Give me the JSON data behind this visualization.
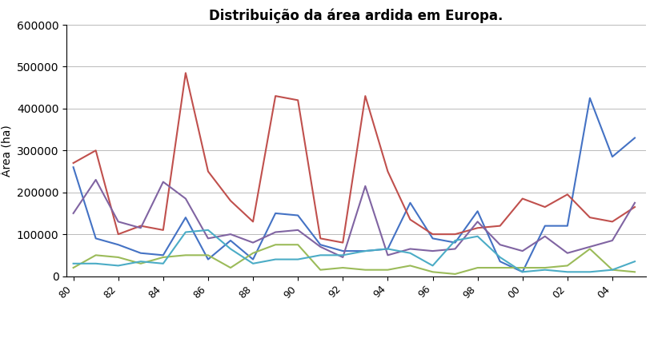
{
  "title": "Distribuição da área ardida em Europa.",
  "ylabel": "Área (ha)",
  "years": [
    1980,
    1981,
    1982,
    1983,
    1984,
    1985,
    1986,
    1987,
    1988,
    1989,
    1990,
    1991,
    1992,
    1993,
    1994,
    1995,
    1996,
    1997,
    1998,
    1999,
    2000,
    2001,
    2002,
    2003,
    2004,
    2005
  ],
  "series": {
    "Portugal": {
      "color": "#4472C4",
      "values": [
        260000,
        90000,
        75000,
        55000,
        50000,
        140000,
        40000,
        85000,
        40000,
        150000,
        145000,
        75000,
        60000,
        60000,
        65000,
        175000,
        90000,
        80000,
        155000,
        35000,
        10000,
        120000,
        120000,
        425000,
        285000,
        330000
      ]
    },
    "Espanha": {
      "color": "#C0504D",
      "values": [
        270000,
        300000,
        100000,
        120000,
        110000,
        485000,
        250000,
        180000,
        130000,
        430000,
        420000,
        90000,
        80000,
        430000,
        250000,
        135000,
        100000,
        100000,
        115000,
        120000,
        185000,
        165000,
        195000,
        140000,
        130000,
        165000
      ]
    },
    "França": {
      "color": "#9BBB59",
      "values": [
        20000,
        50000,
        45000,
        30000,
        45000,
        50000,
        50000,
        20000,
        55000,
        75000,
        75000,
        15000,
        20000,
        15000,
        15000,
        25000,
        10000,
        5000,
        20000,
        20000,
        20000,
        20000,
        25000,
        65000,
        15000,
        10000
      ]
    },
    "Itália": {
      "color": "#8064A2",
      "values": [
        150000,
        230000,
        130000,
        115000,
        225000,
        185000,
        90000,
        100000,
        80000,
        105000,
        110000,
        70000,
        45000,
        215000,
        50000,
        65000,
        60000,
        65000,
        130000,
        75000,
        60000,
        95000,
        55000,
        70000,
        85000,
        175000
      ]
    },
    "Grécia": {
      "color": "#4BACC6",
      "values": [
        30000,
        30000,
        25000,
        35000,
        30000,
        105000,
        110000,
        65000,
        30000,
        40000,
        40000,
        50000,
        50000,
        60000,
        65000,
        55000,
        25000,
        85000,
        95000,
        45000,
        10000,
        15000,
        10000,
        10000,
        15000,
        35000
      ]
    }
  },
  "ylim": [
    0,
    600000
  ],
  "yticks": [
    0,
    100000,
    200000,
    300000,
    400000,
    500000,
    600000
  ],
  "background_color": "#ffffff",
  "grid_color": "#b0b0b0",
  "title_fontsize": 12,
  "axis_fontsize": 10,
  "legend_fontsize": 10,
  "tick_fontsize": 9
}
